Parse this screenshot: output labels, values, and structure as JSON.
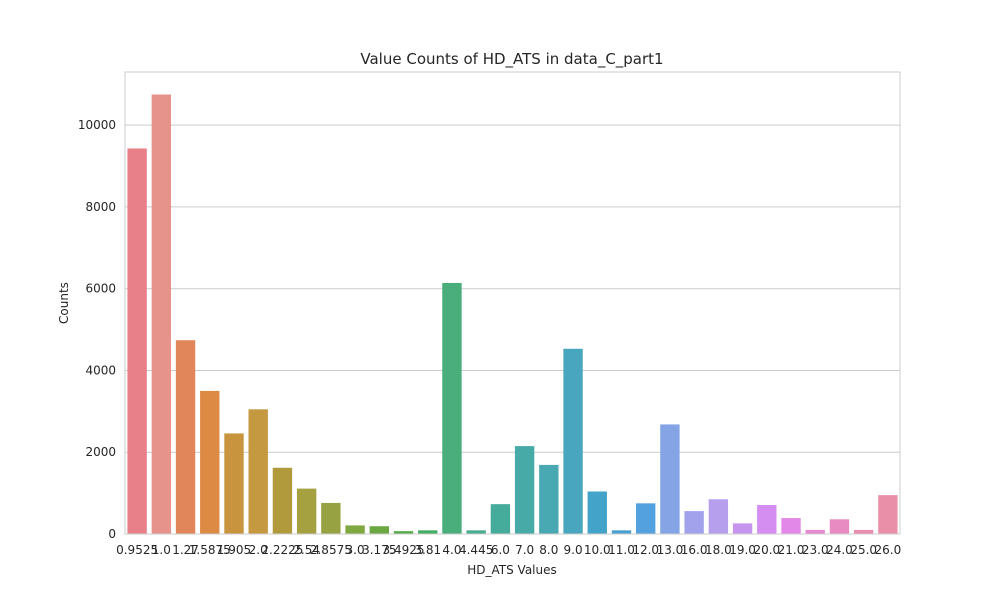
{
  "chart_data": {
    "type": "bar",
    "title": "Value Counts of HD_ATS in data_C_part1",
    "xlabel": "HD_ATS Values",
    "ylabel": "Counts",
    "ylim": [
      0,
      11300
    ],
    "yticks": [
      0,
      2000,
      4000,
      6000,
      8000,
      10000
    ],
    "grid": "y",
    "categories": [
      "0.9525",
      "1.0",
      "1.27",
      "1.5875",
      "1.905",
      "2.0",
      "2.2225",
      "2.54",
      "2.8575",
      "3.0",
      "3.175",
      "3.4925",
      "3.81",
      "4.0",
      "4.445",
      "6.0",
      "7.0",
      "8.0",
      "9.0",
      "10.0",
      "11.0",
      "12.0",
      "13.0",
      "16.0",
      "18.0",
      "19.0",
      "20.0",
      "21.0",
      "23.0",
      "24.0",
      "25.0",
      "26.0"
    ],
    "values": [
      9430,
      10750,
      4740,
      3500,
      2460,
      3050,
      1620,
      1110,
      760,
      210,
      190,
      70,
      90,
      6140,
      90,
      730,
      2150,
      1690,
      4530,
      1040,
      90,
      750,
      2680,
      560,
      850,
      260,
      710,
      390,
      100,
      360,
      100,
      950
    ],
    "colors": [
      "#e8808a",
      "#e6938c",
      "#e0865a",
      "#dd8a45",
      "#c8953e",
      "#c49940",
      "#b09a3c",
      "#a5a040",
      "#97a343",
      "#7fa841",
      "#6ca842",
      "#57ab4a",
      "#43ad63",
      "#49ad7c",
      "#49ac8e",
      "#45ab9b",
      "#47aaa7",
      "#49a9b3",
      "#49a6bf",
      "#44a3c9",
      "#4aa0d0",
      "#53a1df",
      "#84a4e6",
      "#a2a2ec",
      "#b6a0ee",
      "#c895ee",
      "#d48df0",
      "#e288e8",
      "#e58bd2",
      "#e88bc3",
      "#ea8dae",
      "#ea8fa8"
    ]
  }
}
